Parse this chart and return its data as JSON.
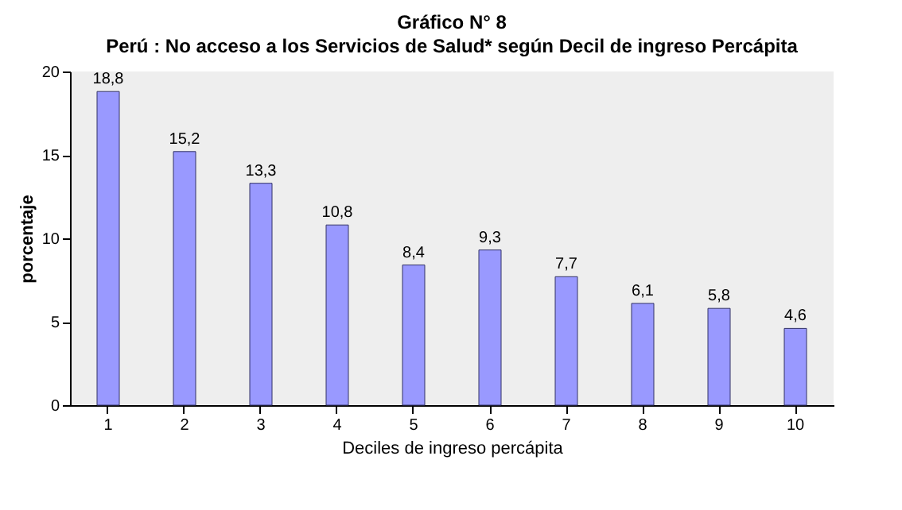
{
  "chart_data": {
    "type": "bar",
    "title": "Gráfico N° 8",
    "subtitle": "Perú : No acceso a los Servicios de Salud* según Decil de ingreso Percápita",
    "xlabel": "Deciles de ingreso percápita",
    "ylabel": "porcentaje",
    "categories": [
      "1",
      "2",
      "3",
      "4",
      "5",
      "6",
      "7",
      "8",
      "9",
      "10"
    ],
    "values": [
      18.8,
      15.2,
      13.3,
      10.8,
      8.4,
      9.3,
      7.7,
      6.1,
      5.8,
      4.6
    ],
    "value_labels": [
      "18,8",
      "15,2",
      "13,3",
      "10,8",
      "8,4",
      "9,3",
      "7,7",
      "6,1",
      "5,8",
      "4,6"
    ],
    "color": "#9999ff",
    "ylim": [
      0,
      20
    ],
    "yticks": [
      0,
      5,
      10,
      15,
      20
    ],
    "grid": false
  }
}
